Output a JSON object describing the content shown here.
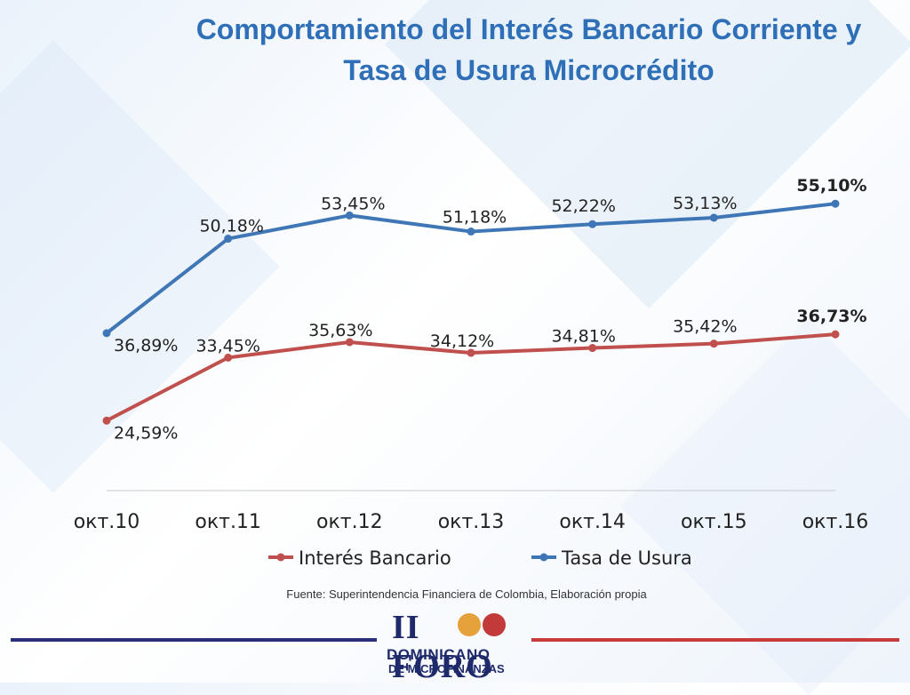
{
  "title": {
    "line1": "Comportamiento del Interés Bancario Corriente y",
    "line2": "Tasa de Usura Microcrédito"
  },
  "source_note": "Fuente: Superintendencia Financiera de Colombia,  Elaboración propia",
  "logo": {
    "title": "II FORO",
    "line1": "DOMINICANO",
    "line2": "DE MICROFINANZAS"
  },
  "chart_data": {
    "type": "line",
    "categories": [
      "окт.10",
      "окт.11",
      "окт.12",
      "окт.13",
      "окт.14",
      "окт.15",
      "окт.16"
    ],
    "ylim": [
      15,
      60
    ],
    "grid": false,
    "legend_position": "bottom",
    "series": [
      {
        "name": "Interés Bancario",
        "color": "#c0504d",
        "values": [
          24.59,
          33.45,
          35.63,
          34.12,
          34.81,
          35.42,
          36.73
        ],
        "labels": [
          "24,59%",
          "33,45%",
          "35,63%",
          "34,12%",
          "34,81%",
          "35,42%",
          "36,73%"
        ]
      },
      {
        "name": "Tasa de Usura",
        "color": "#3f76b5",
        "values": [
          36.89,
          50.18,
          53.45,
          51.18,
          52.22,
          53.13,
          55.1
        ],
        "labels": [
          "36,89%",
          "50,18%",
          "53,45%",
          "51,18%",
          "52,22%",
          "53,13%",
          "55,10%"
        ]
      }
    ]
  }
}
